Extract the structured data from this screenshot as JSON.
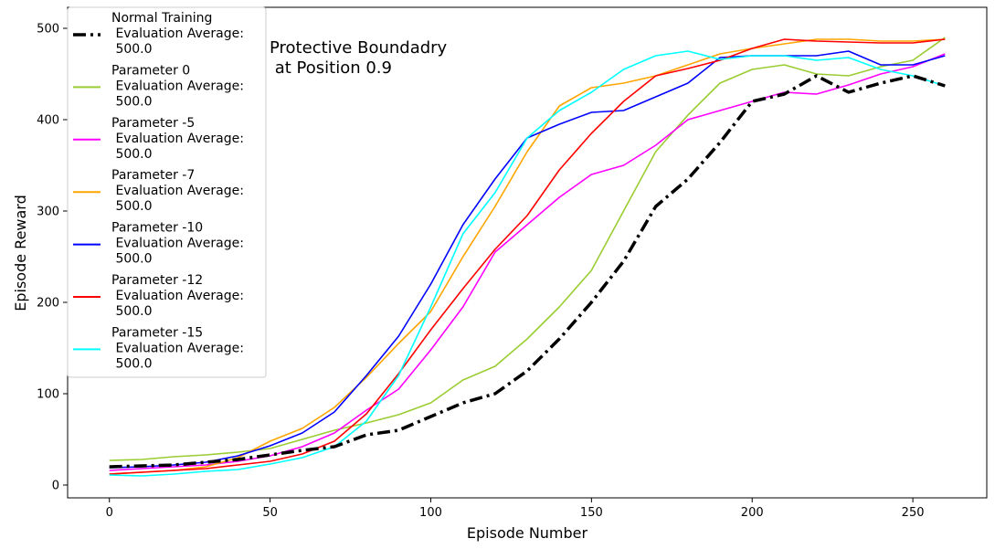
{
  "chart_data": {
    "type": "line",
    "title": "",
    "xlabel": "Episode Number",
    "ylabel": "Episode Reward",
    "xlim": [
      -13,
      273
    ],
    "ylim": [
      -14,
      523
    ],
    "xticks": [
      0,
      50,
      100,
      150,
      200,
      250
    ],
    "yticks": [
      0,
      100,
      200,
      300,
      400,
      500
    ],
    "grid": false,
    "legend_placement": "upper-left",
    "annotation": [
      "Protective Boundadry",
      " at Position 0.9"
    ],
    "series": [
      {
        "name": "Normal Training\n Evaluation Average:\n 500.0",
        "color": "#000000",
        "style": "dashdot",
        "width": 3.5,
        "x": [
          0,
          20,
          40,
          60,
          70,
          80,
          90,
          100,
          110,
          120,
          130,
          140,
          150,
          160,
          170,
          180,
          190,
          200,
          210,
          220,
          230,
          240,
          250,
          260
        ],
        "y": [
          20,
          22,
          28,
          38,
          42,
          55,
          60,
          75,
          90,
          100,
          125,
          160,
          200,
          245,
          305,
          335,
          375,
          420,
          428,
          448,
          430,
          440,
          448,
          437
        ]
      },
      {
        "name": "Parameter 0\n Evaluation Average:\n 500.0",
        "color": "#9ACD32",
        "style": "solid",
        "width": 1.6,
        "x": [
          0,
          10,
          20,
          30,
          40,
          50,
          60,
          70,
          80,
          90,
          100,
          110,
          120,
          130,
          140,
          150,
          160,
          170,
          180,
          190,
          200,
          210,
          220,
          230,
          240,
          250,
          260
        ],
        "y": [
          27,
          28,
          31,
          33,
          36,
          40,
          50,
          60,
          68,
          77,
          90,
          115,
          130,
          160,
          195,
          235,
          300,
          365,
          405,
          440,
          455,
          460,
          450,
          448,
          458,
          465,
          490
        ]
      },
      {
        "name": "Parameter -5\n Evaluation Average:\n 500.0",
        "color": "#FF00FF",
        "style": "solid",
        "width": 1.6,
        "x": [
          0,
          10,
          20,
          30,
          40,
          50,
          60,
          70,
          80,
          90,
          100,
          110,
          120,
          130,
          140,
          150,
          160,
          170,
          180,
          190,
          200,
          210,
          220,
          230,
          240,
          250,
          260
        ],
        "y": [
          16,
          18,
          20,
          22,
          26,
          32,
          42,
          57,
          82,
          105,
          148,
          195,
          255,
          285,
          315,
          340,
          350,
          372,
          400,
          410,
          420,
          430,
          428,
          438,
          450,
          458,
          472
        ]
      },
      {
        "name": "Parameter -7\n Evaluation Average:\n 500.0",
        "color": "#FFA500",
        "style": "solid",
        "width": 1.6,
        "x": [
          0,
          10,
          20,
          30,
          40,
          50,
          60,
          70,
          80,
          90,
          100,
          110,
          120,
          130,
          140,
          150,
          160,
          170,
          180,
          190,
          200,
          210,
          220,
          230,
          240,
          250,
          260
        ],
        "y": [
          12,
          14,
          16,
          20,
          30,
          48,
          62,
          85,
          118,
          155,
          190,
          250,
          305,
          365,
          415,
          435,
          440,
          448,
          460,
          472,
          478,
          483,
          488,
          488,
          486,
          486,
          488
        ]
      },
      {
        "name": "Parameter -10\n Evaluation Average:\n 500.0",
        "color": "#0000FF",
        "style": "solid",
        "width": 1.6,
        "x": [
          0,
          10,
          20,
          30,
          40,
          50,
          60,
          70,
          80,
          90,
          100,
          110,
          120,
          130,
          140,
          150,
          160,
          170,
          180,
          190,
          200,
          210,
          220,
          230,
          240,
          250,
          260
        ],
        "y": [
          19,
          20,
          22,
          25,
          32,
          43,
          57,
          80,
          120,
          163,
          220,
          285,
          335,
          380,
          395,
          408,
          410,
          425,
          440,
          468,
          470,
          470,
          470,
          475,
          460,
          460,
          470
        ]
      },
      {
        "name": "Parameter -12\n Evaluation Average:\n 500.0",
        "color": "#FF0000",
        "style": "solid",
        "width": 1.6,
        "x": [
          0,
          10,
          20,
          30,
          40,
          50,
          60,
          70,
          80,
          90,
          100,
          110,
          120,
          130,
          140,
          150,
          160,
          170,
          180,
          190,
          200,
          210,
          220,
          230,
          240,
          250,
          260
        ],
        "y": [
          12,
          14,
          16,
          18,
          22,
          26,
          34,
          48,
          78,
          122,
          170,
          215,
          258,
          295,
          345,
          385,
          420,
          448,
          456,
          465,
          478,
          488,
          486,
          485,
          484,
          484,
          488
        ]
      },
      {
        "name": "Parameter -15\n Evaluation Average:\n 500.0",
        "color": "#00FFFF",
        "style": "solid",
        "width": 1.6,
        "x": [
          0,
          10,
          20,
          30,
          40,
          50,
          60,
          70,
          80,
          90,
          100,
          110,
          120,
          130,
          140,
          150,
          160,
          170,
          180,
          190,
          200,
          210,
          220,
          230,
          240,
          250,
          260
        ],
        "y": [
          11,
          10,
          12,
          15,
          17,
          23,
          30,
          42,
          70,
          120,
          195,
          275,
          320,
          380,
          410,
          430,
          455,
          470,
          475,
          466,
          470,
          470,
          465,
          468,
          455,
          448,
          437
        ]
      }
    ]
  }
}
